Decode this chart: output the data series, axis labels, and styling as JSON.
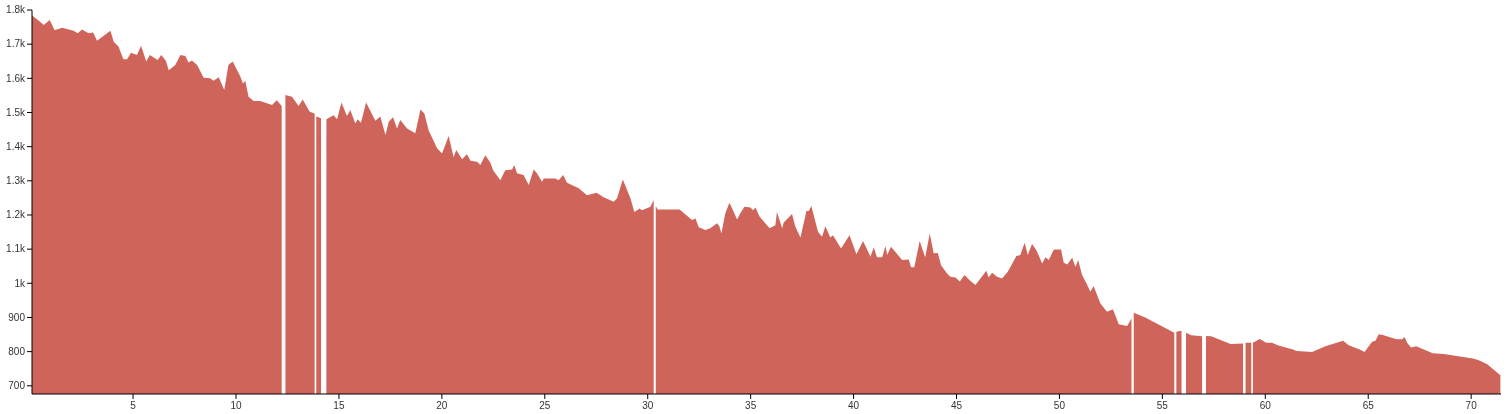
{
  "chart_data": {
    "type": "area",
    "xlim": [
      0.09,
      71.45
    ],
    "ylim": [
      676,
      1800
    ],
    "xticks": [
      5,
      10,
      15,
      20,
      25,
      30,
      35,
      40,
      45,
      50,
      55,
      60,
      65,
      70
    ],
    "yticks": [
      700,
      800,
      900,
      {
        "value": 1000,
        "label": "1k"
      },
      {
        "value": 1100,
        "label": "1.1k"
      },
      {
        "value": 1200,
        "label": "1.2k"
      },
      {
        "value": 1300,
        "label": "1.3k"
      },
      {
        "value": 1400,
        "label": "1.4k"
      },
      {
        "value": 1500,
        "label": "1.5k"
      },
      {
        "value": 1600,
        "label": "1.6k"
      },
      {
        "value": 1700,
        "label": "1.7k"
      },
      {
        "value": 1800,
        "label": "1.8k"
      }
    ],
    "grid": false,
    "series": [
      {
        "color": "#cf645a",
        "x": [
          0.09,
          0.17,
          0.41,
          0.66,
          0.95,
          1.19,
          1.55,
          2.11,
          2.31,
          2.52,
          2.84,
          3.06,
          3.25,
          3.9,
          4.06,
          4.29,
          4.53,
          4.71,
          4.9,
          5.19,
          5.39,
          5.64,
          5.81,
          6.19,
          6.37,
          6.6,
          6.73,
          7.05,
          7.3,
          7.54,
          7.69,
          7.86,
          8.11,
          8.43,
          8.75,
          8.91,
          9.16,
          9.43,
          9.63,
          9.84,
          10.21,
          10.34,
          10.45,
          10.61,
          10.86,
          11.18,
          11.75,
          11.98,
          12.22,
          12.3,
          12.4,
          12.72,
          13.04,
          13.24,
          13.58,
          13.82,
          13.86,
          13.9,
          14.13,
          14.26,
          14.39,
          14.74,
          14.91,
          15.12,
          15.39,
          15.55,
          15.8,
          15.91,
          16.07,
          16.32,
          16.77,
          17.01,
          17.26,
          17.42,
          17.63,
          17.82,
          17.98,
          18.31,
          18.71,
          18.96,
          19.15,
          19.36,
          19.77,
          20.01,
          20.33,
          20.57,
          20.7,
          20.98,
          21.22,
          21.39,
          21.71,
          21.87,
          22.11,
          22.36,
          22.49,
          22.84,
          23.08,
          23.41,
          23.52,
          23.65,
          23.97,
          24.22,
          24.46,
          24.62,
          24.87,
          24.95,
          25.51,
          25.67,
          25.89,
          26.08,
          26.65,
          27.05,
          27.51,
          27.86,
          28.35,
          28.51,
          28.79,
          29.16,
          29.35,
          29.61,
          29.72,
          30.13,
          30.29,
          30.34,
          30.39,
          30.48,
          31.55,
          32.15,
          32.32,
          32.48,
          32.8,
          33.04,
          33.37,
          33.48,
          33.58,
          33.77,
          33.97,
          34.18,
          34.34,
          34.5,
          34.7,
          34.99,
          35.12,
          35.23,
          35.44,
          35.92,
          36.2,
          36.28,
          36.53,
          36.6,
          37.01,
          37.17,
          37.42,
          37.71,
          37.82,
          37.95,
          38.27,
          38.47,
          38.63,
          38.87,
          39.0,
          39.39,
          39.8,
          40.14,
          40.46,
          40.82,
          40.98,
          41.14,
          41.39,
          41.55,
          41.63,
          41.82,
          42.36,
          42.68,
          42.79,
          42.95,
          43.21,
          43.48,
          43.7,
          43.89,
          44.09,
          44.25,
          44.54,
          44.7,
          44.95,
          45.16,
          45.39,
          45.64,
          45.92,
          46.45,
          46.56,
          46.73,
          46.97,
          47.21,
          47.49,
          47.91,
          48.1,
          48.31,
          48.46,
          48.67,
          48.88,
          49.16,
          49.32,
          49.48,
          49.73,
          50.08,
          50.21,
          50.38,
          50.62,
          50.78,
          50.91,
          51.1,
          51.31,
          51.5,
          51.66,
          51.99,
          52.31,
          52.6,
          52.88,
          53.29,
          53.5,
          53.55,
          53.61,
          54.17,
          55.58,
          55.63,
          55.68,
          55.93,
          56.04,
          56.15,
          56.4,
          56.93,
          57.03,
          57.12,
          57.37,
          58.31,
          58.92,
          58.98,
          59.04,
          59.32,
          59.36,
          59.4,
          59.73,
          60.05,
          60.33,
          60.6,
          60.98,
          61.35,
          61.51,
          62.27,
          62.92,
          63.78,
          64.05,
          64.59,
          64.82,
          65.19,
          65.35,
          65.51,
          65.75,
          66.37,
          66.65,
          66.76,
          66.89,
          67.08,
          67.33,
          68.13,
          68.67,
          70.09,
          70.37,
          70.78,
          71.42
        ],
        "values": [
          1785,
          1780,
          1769,
          1756,
          1771,
          1741,
          1748,
          1739,
          1732,
          1743,
          1732,
          1734,
          1710,
          1739,
          1707,
          1693,
          1656,
          1656,
          1675,
          1668,
          1695,
          1649,
          1668,
          1654,
          1668,
          1651,
          1624,
          1639,
          1668,
          1665,
          1646,
          1652,
          1639,
          1602,
          1600,
          1593,
          1603,
          1566,
          1639,
          1649,
          1605,
          1585,
          1593,
          1546,
          1534,
          1534,
          1522,
          1536,
          1519,
          null,
          1551,
          1546,
          1519,
          1538,
          1502,
          1497,
          null,
          1488,
          1483,
          null,
          1480,
          1492,
          1480,
          1529,
          1490,
          1507,
          1468,
          1480,
          1470,
          1529,
          1476,
          1488,
          1434,
          1473,
          1486,
          1453,
          1478,
          1453,
          1439,
          1509,
          1497,
          1447,
          1395,
          1380,
          1431,
          1369,
          1390,
          1363,
          1378,
          1359,
          1356,
          1346,
          1375,
          1353,
          1331,
          1302,
          1331,
          1333,
          1346,
          1322,
          1317,
          1288,
          1333,
          1322,
          1297,
          1307,
          1307,
          1302,
          1317,
          1294,
          1278,
          1258,
          1265,
          1252,
          1239,
          1249,
          1304,
          1249,
          1209,
          1219,
          1214,
          1224,
          1244,
          null,
          1226,
          1216,
          1216,
          1185,
          1190,
          1164,
          1156,
          1161,
          1176,
          1167,
          1146,
          1205,
          1236,
          1209,
          1187,
          1205,
          1224,
          1222,
          1214,
          1222,
          1195,
          1161,
          1170,
          1209,
          1161,
          1177,
          1203,
          1166,
          1134,
          1212,
          1212,
          1226,
          1151,
          1136,
          1167,
          1134,
          1141,
          1102,
          1141,
          1085,
          1124,
          1078,
          1105,
          1076,
          1076,
          1109,
          1083,
          1107,
          1068,
          1070,
          1047,
          1047,
          1124,
          1076,
          1146,
          1088,
          1089,
          1053,
          1029,
          1019,
          1017,
          1005,
          1024,
          1009,
          995,
          1037,
          1017,
          1031,
          1019,
          1014,
          1034,
          1080,
          1083,
          1119,
          1083,
          1115,
          1097,
          1058,
          1076,
          1068,
          1099,
          1099,
          1060,
          1055,
          1075,
          1048,
          1068,
          1024,
          1000,
          975,
          992,
          941,
          917,
          924,
          880,
          875,
          897,
          null,
          914,
          900,
          855,
          null,
          858,
          861,
          null,
          855,
          848,
          845,
          null,
          846,
          845,
          822,
          824,
          null,
          826,
          826,
          null,
          826,
          837,
          826,
          826,
          819,
          812,
          806,
          802,
          799,
          816,
          832,
          819,
          806,
          799,
          829,
          832,
          851,
          848,
          836,
          836,
          843,
          826,
          812,
          816,
          795,
          793,
          780,
          775,
          763,
          731
        ]
      }
    ]
  }
}
